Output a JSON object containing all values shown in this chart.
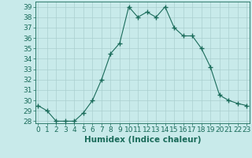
{
  "x": [
    0,
    1,
    2,
    3,
    4,
    5,
    6,
    7,
    8,
    9,
    10,
    11,
    12,
    13,
    14,
    15,
    16,
    17,
    18,
    19,
    20,
    21,
    22,
    23
  ],
  "y": [
    29.5,
    29.0,
    28.0,
    28.0,
    28.0,
    28.8,
    30.0,
    32.0,
    34.5,
    35.5,
    39.0,
    38.0,
    38.5,
    38.0,
    39.0,
    37.0,
    36.2,
    36.2,
    35.0,
    33.2,
    30.5,
    30.0,
    29.7,
    29.5
  ],
  "line_color": "#1a6b5a",
  "marker": "+",
  "marker_size": 4,
  "bg_color": "#c8eaea",
  "grid_color": "#aacfcf",
  "xlabel": "Humidex (Indice chaleur)",
  "ylim_min": 27.8,
  "ylim_max": 39.5,
  "xlim_min": -0.3,
  "xlim_max": 23.3,
  "yticks": [
    28,
    29,
    30,
    31,
    32,
    33,
    34,
    35,
    36,
    37,
    38,
    39
  ],
  "xticks": [
    0,
    1,
    2,
    3,
    4,
    5,
    6,
    7,
    8,
    9,
    10,
    11,
    12,
    13,
    14,
    15,
    16,
    17,
    18,
    19,
    20,
    21,
    22,
    23
  ],
  "tick_color": "#1a6b5a",
  "label_color": "#1a6b5a",
  "axis_color": "#1a6b5a",
  "tick_fontsize": 6.5,
  "xlabel_fontsize": 7.5
}
